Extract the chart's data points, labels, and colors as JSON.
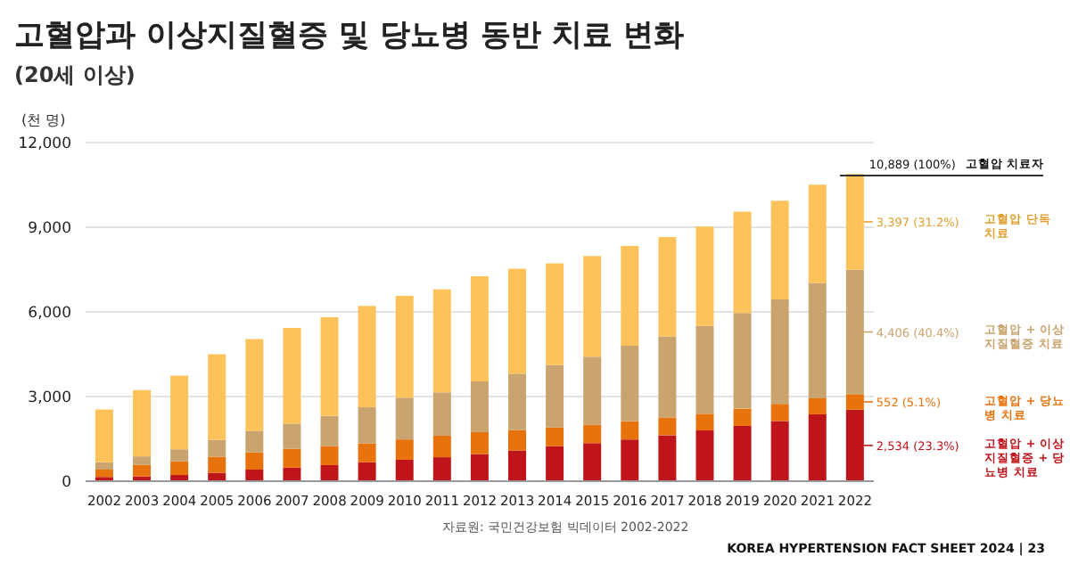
{
  "chart_data": {
    "type": "bar",
    "title": "고혈압과 이상지질혈증 및 당뇨병 동반 치료 변화",
    "subtitle": "(20세 이상)",
    "ylabel": "(천 명)",
    "categories": [
      "2002",
      "2003",
      "2004",
      "2005",
      "2006",
      "2007",
      "2008",
      "2009",
      "2010",
      "2011",
      "2012",
      "2013",
      "2014",
      "2015",
      "2016",
      "2017",
      "2018",
      "2019",
      "2020",
      "2021",
      "2022"
    ],
    "stacked": true,
    "grid": "y",
    "legend": "right",
    "ylim": [
      0,
      12000
    ],
    "yticks": [
      0,
      {
        "value": 3000,
        "label": "3,000"
      },
      {
        "value": 6000,
        "label": "6,000"
      },
      {
        "value": 9000,
        "label": "9,000"
      },
      {
        "value": 12000,
        "label": "12,000"
      }
    ],
    "series": [
      {
        "name": "고혈압 + 이상지질혈증 + 당뇨병 치료",
        "color": "#c0141b",
        "values": [
          150,
          170,
          220,
          300,
          410,
          480,
          570,
          670,
          760,
          850,
          960,
          1090,
          1240,
          1350,
          1480,
          1630,
          1800,
          1960,
          2130,
          2370,
          2534
        ],
        "value_labels": [
          null,
          null,
          null,
          null,
          null,
          null,
          null,
          null,
          null,
          null,
          null,
          null,
          null,
          null,
          null,
          null,
          null,
          null,
          null,
          null,
          "2,534 (23.3%)"
        ]
      },
      {
        "name": "고혈압 + 당뇨병 치료",
        "color": "#e8720c",
        "values": [
          260,
          410,
          480,
          570,
          610,
          670,
          680,
          670,
          720,
          760,
          780,
          720,
          670,
          650,
          650,
          630,
          590,
          610,
          610,
          570,
          552
        ],
        "value_labels": [
          null,
          null,
          null,
          null,
          null,
          null,
          null,
          null,
          null,
          null,
          null,
          null,
          null,
          null,
          null,
          null,
          null,
          null,
          null,
          null,
          "552 (5.1%)"
        ]
      },
      {
        "name": "고혈압 + 이상지질혈증 치료",
        "color": "#c9a46e",
        "values": [
          260,
          300,
          430,
          590,
          760,
          890,
          1060,
          1280,
          1480,
          1540,
          1800,
          2000,
          2200,
          2410,
          2670,
          2870,
          3110,
          3390,
          3700,
          4090,
          4406
        ],
        "value_labels": [
          null,
          null,
          null,
          null,
          null,
          null,
          null,
          null,
          null,
          null,
          null,
          null,
          null,
          null,
          null,
          null,
          null,
          null,
          null,
          null,
          "4,406 (40.4%)"
        ]
      },
      {
        "name": "고혈압 단독 치료",
        "color": "#fdc35a",
        "values": [
          1870,
          2350,
          2610,
          3040,
          3260,
          3390,
          3500,
          3590,
          3610,
          3650,
          3720,
          3720,
          3610,
          3570,
          3540,
          3520,
          3520,
          3590,
          3500,
          3480,
          3397
        ],
        "value_labels": [
          null,
          null,
          null,
          null,
          null,
          null,
          null,
          null,
          null,
          null,
          null,
          null,
          null,
          null,
          null,
          null,
          null,
          null,
          null,
          null,
          "3,397 (31.2%)"
        ]
      }
    ],
    "totals": [
      null,
      null,
      null,
      null,
      null,
      null,
      null,
      null,
      null,
      null,
      null,
      null,
      null,
      null,
      null,
      null,
      null,
      null,
      null,
      null,
      "10,889 (100%)"
    ],
    "annotations": [
      {
        "text": "고혈압 치료자",
        "x": "2022",
        "y": 10889
      },
      "자료원: 국민건강보험 빅데이터 2002-2022",
      "KOREA HYPERTENSION FACT SHEET 2024 | 23"
    ]
  }
}
